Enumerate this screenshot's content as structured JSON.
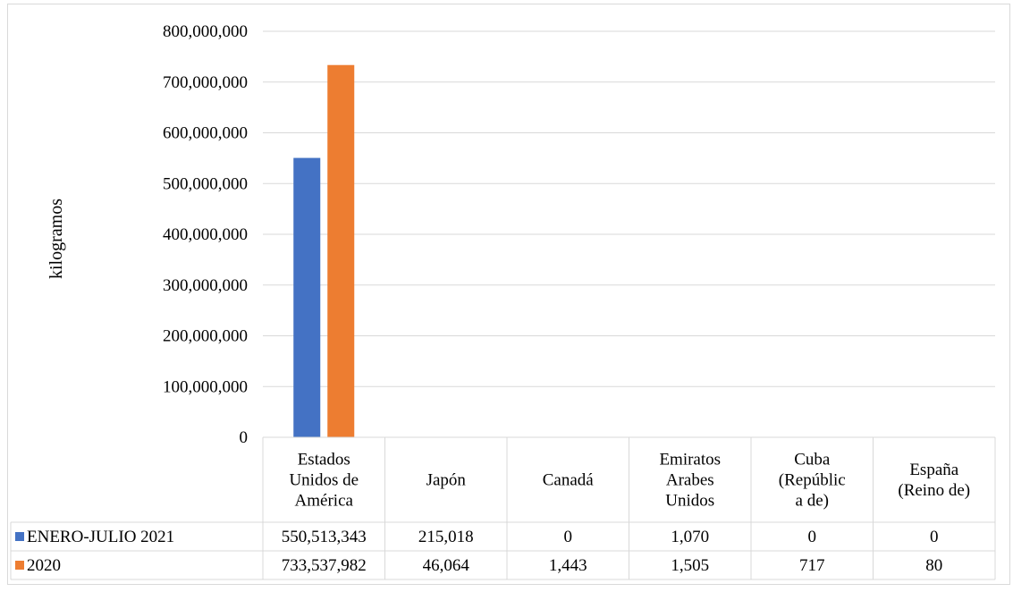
{
  "chart_data": {
    "type": "bar",
    "ylabel": "kilogramos",
    "ylim": [
      0,
      800000000
    ],
    "yticks": [
      "0",
      "100,000,000",
      "200,000,000",
      "300,000,000",
      "400,000,000",
      "500,000,000",
      "600,000,000",
      "700,000,000",
      "800,000,000"
    ],
    "grid": true,
    "legend": "table",
    "categories": [
      [
        "Estados",
        "Unidos de",
        "América"
      ],
      [
        "Japón"
      ],
      [
        "Canadá"
      ],
      [
        "Emiratos",
        "Arabes",
        "Unidos"
      ],
      [
        "Cuba",
        "(Repúblic",
        "a de)"
      ],
      [
        "España",
        "(Reino de)"
      ]
    ],
    "series": [
      {
        "name": "ENERO-JULIO 2021",
        "color": "#4472c4",
        "values": [
          550513343,
          215018,
          0,
          1070,
          0,
          0
        ],
        "labels": [
          "550,513,343",
          "215,018",
          "0",
          "1,070",
          "0",
          "0"
        ]
      },
      {
        "name": "2020",
        "color": "#ed7d31",
        "values": [
          733537982,
          46064,
          1443,
          1505,
          717,
          80
        ],
        "labels": [
          "733,537,982",
          "46,064",
          "1,443",
          "1,505",
          "717",
          "80"
        ]
      }
    ]
  }
}
